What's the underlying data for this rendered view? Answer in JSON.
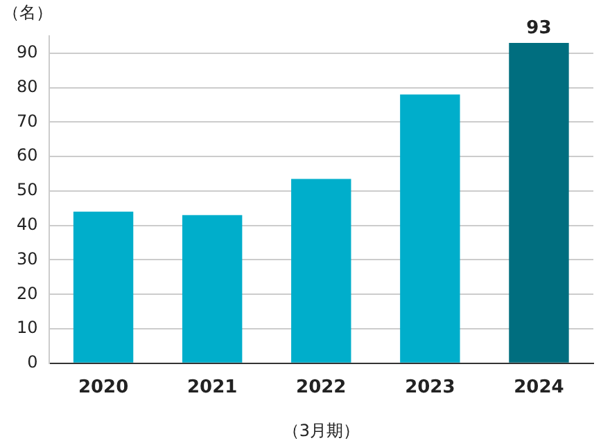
{
  "chart_data": {
    "type": "bar",
    "ylabel": "（名）",
    "xlabel": "（3月期）",
    "categories": [
      "2020",
      "2021",
      "2022",
      "2023",
      "2024"
    ],
    "values": [
      44,
      43,
      53.5,
      78,
      93
    ],
    "colors": [
      "#00aecb",
      "#00aecb",
      "#00aecb",
      "#00aecb",
      "#006e7f"
    ],
    "value_labels": [
      null,
      null,
      null,
      null,
      "93"
    ],
    "ylim": [
      0,
      95
    ],
    "yticks": [
      0,
      10,
      20,
      30,
      40,
      50,
      60,
      70,
      80,
      90
    ],
    "grid": "y",
    "legend": false
  }
}
